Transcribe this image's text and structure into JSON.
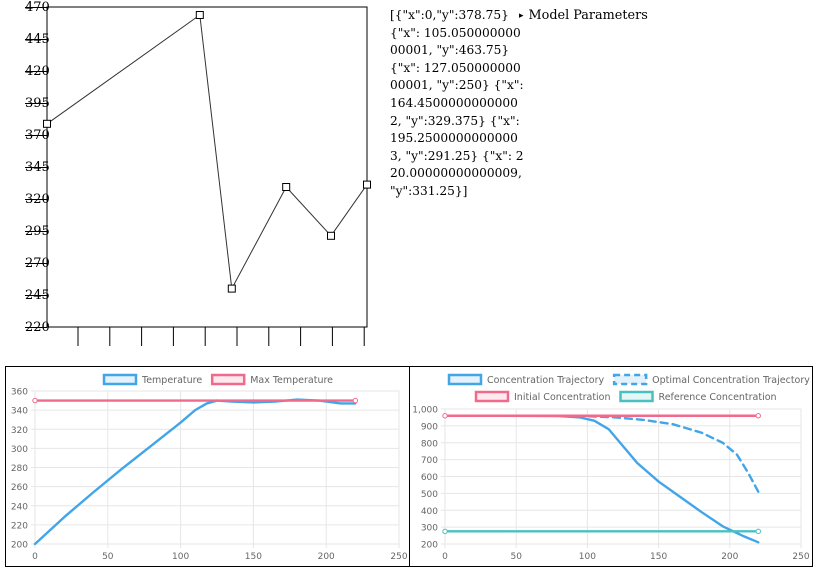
{
  "top": {
    "json_readout": "[{\"x\":0,\"y\":378.75} {\"x\": 105.05000000000001, \"y\":463.75} {\"x\": 127.05000000000001, \"y\":250} {\"x\": 164.45000000000002, \"y\":329.375} {\"x\": 195.25000000000003, \"y\":291.25} {\"x\": 220.00000000000009, \"y\":331.25}]",
    "details_summary": "Model Parameters",
    "details_marker": "▸"
  },
  "chart_data": [
    {
      "type": "line",
      "id": "editable-temperature-profile",
      "ylim": [
        220,
        470
      ],
      "xlim": [
        0,
        220
      ],
      "y_ticks": [
        470,
        445,
        420,
        395,
        370,
        345,
        320,
        295,
        270,
        245,
        220
      ],
      "series": [
        {
          "name": "control points",
          "color": "#333333",
          "points": [
            {
              "x": 0,
              "y": 378.75
            },
            {
              "x": 105.05,
              "y": 463.75
            },
            {
              "x": 127.05,
              "y": 250
            },
            {
              "x": 164.45,
              "y": 329.375
            },
            {
              "x": 195.25,
              "y": 291.25
            },
            {
              "x": 220.0,
              "y": 331.25
            }
          ]
        }
      ]
    },
    {
      "type": "line",
      "id": "temperature-chart",
      "xlim": [
        0,
        250
      ],
      "ylim": [
        200,
        360
      ],
      "x_ticks": [
        0,
        50,
        100,
        150,
        200,
        250
      ],
      "y_ticks": [
        200,
        220,
        240,
        260,
        280,
        300,
        320,
        340,
        360
      ],
      "legend": "top",
      "series": [
        {
          "name": "Temperature",
          "color": "#42a5e8",
          "dashed": false,
          "points": [
            [
              0,
              200
            ],
            [
              20,
              228
            ],
            [
              40,
              254
            ],
            [
              60,
              279
            ],
            [
              80,
              303
            ],
            [
              100,
              327
            ],
            [
              110,
              340
            ],
            [
              118,
              347
            ],
            [
              125,
              350
            ],
            [
              135,
              349
            ],
            [
              150,
              348
            ],
            [
              165,
              349
            ],
            [
              180,
              351
            ],
            [
              195,
              350
            ],
            [
              210,
              347
            ],
            [
              220,
              347
            ]
          ]
        },
        {
          "name": "Max Temperature",
          "color": "#f06a8c",
          "dashed": false,
          "points": [
            [
              0,
              350
            ],
            [
              220,
              350
            ]
          ]
        }
      ]
    },
    {
      "type": "line",
      "id": "concentration-chart",
      "xlim": [
        0,
        250
      ],
      "ylim": [
        200,
        1000
      ],
      "x_ticks": [
        0,
        50,
        100,
        150,
        200,
        250
      ],
      "y_ticks": [
        200,
        300,
        400,
        500,
        600,
        700,
        800,
        900,
        1000
      ],
      "y_tick_labels": [
        "200",
        "300",
        "400",
        "500",
        "600",
        "700",
        "800",
        "900",
        "1,000"
      ],
      "legend": "top",
      "series": [
        {
          "name": "Concentration Trajectory",
          "color": "#42a5e8",
          "dashed": false,
          "points": [
            [
              0,
              960
            ],
            [
              40,
              960
            ],
            [
              80,
              958
            ],
            [
              95,
              950
            ],
            [
              105,
              930
            ],
            [
              115,
              880
            ],
            [
              125,
              780
            ],
            [
              135,
              680
            ],
            [
              150,
              570
            ],
            [
              165,
              480
            ],
            [
              180,
              390
            ],
            [
              195,
              305
            ],
            [
              210,
              245
            ],
            [
              220,
              210
            ]
          ]
        },
        {
          "name": "Optimal Concentration Trajectory",
          "color": "#42a5e8",
          "dashed": true,
          "points": [
            [
              0,
              960
            ],
            [
              80,
              960
            ],
            [
              100,
              957
            ],
            [
              120,
              950
            ],
            [
              140,
              935
            ],
            [
              160,
              910
            ],
            [
              180,
              860
            ],
            [
              195,
              800
            ],
            [
              205,
              730
            ],
            [
              213,
              620
            ],
            [
              220,
              510
            ]
          ]
        },
        {
          "name": "Initial Concentration",
          "color": "#f06a8c",
          "dashed": false,
          "points": [
            [
              0,
              960
            ],
            [
              220,
              960
            ]
          ]
        },
        {
          "name": "Reference Concentration",
          "color": "#4bc0c0",
          "dashed": false,
          "points": [
            [
              0,
              275
            ],
            [
              220,
              275
            ]
          ]
        }
      ]
    }
  ]
}
